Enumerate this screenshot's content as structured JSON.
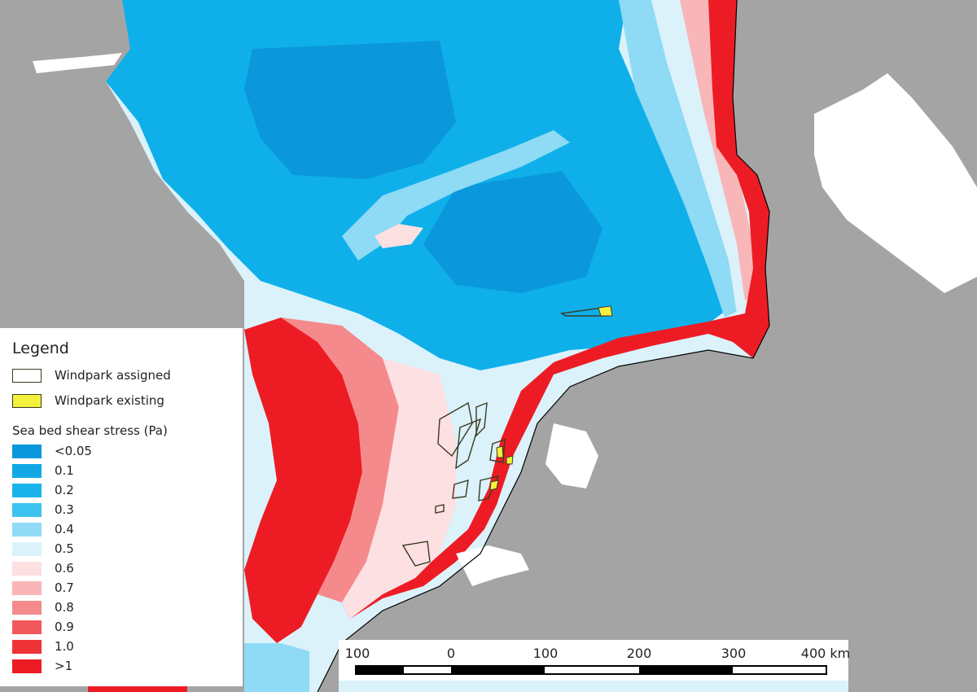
{
  "legend": {
    "title": "Legend",
    "windparks": [
      {
        "label": "Windpark assigned",
        "fill": "none",
        "stroke": "#3a3a22"
      },
      {
        "label": "Windpark existing",
        "fill": "#f4f13c",
        "stroke": "#3a3a22"
      }
    ],
    "stress_title": "Sea bed shear stress (Pa)",
    "classes": [
      {
        "label": "<0.05",
        "color": "#0a97dc"
      },
      {
        "label": "0.1",
        "color": "#12a8e6"
      },
      {
        "label": "0.2",
        "color": "#1ab4ea"
      },
      {
        "label": "0.3",
        "color": "#3cc3ef"
      },
      {
        "label": "0.4",
        "color": "#8fdaf5"
      },
      {
        "label": "0.5",
        "color": "#dbf2fb"
      },
      {
        "label": "0.6",
        "color": "#fde0e2"
      },
      {
        "label": "0.7",
        "color": "#f9b6b8"
      },
      {
        "label": "0.8",
        "color": "#f58a8c"
      },
      {
        "label": "0.9",
        "color": "#f1585b"
      },
      {
        "label": "1.0",
        "color": "#ee3338"
      },
      {
        "label": ">1",
        "color": "#ed1c24"
      }
    ]
  },
  "scalebar": {
    "ticks": [
      "100",
      "0",
      "100",
      "200",
      "300",
      "400 km"
    ]
  },
  "colors": {
    "land": "#a4a4a4",
    "inland_water": "#ffffff",
    "coast_outline": "#000000"
  }
}
